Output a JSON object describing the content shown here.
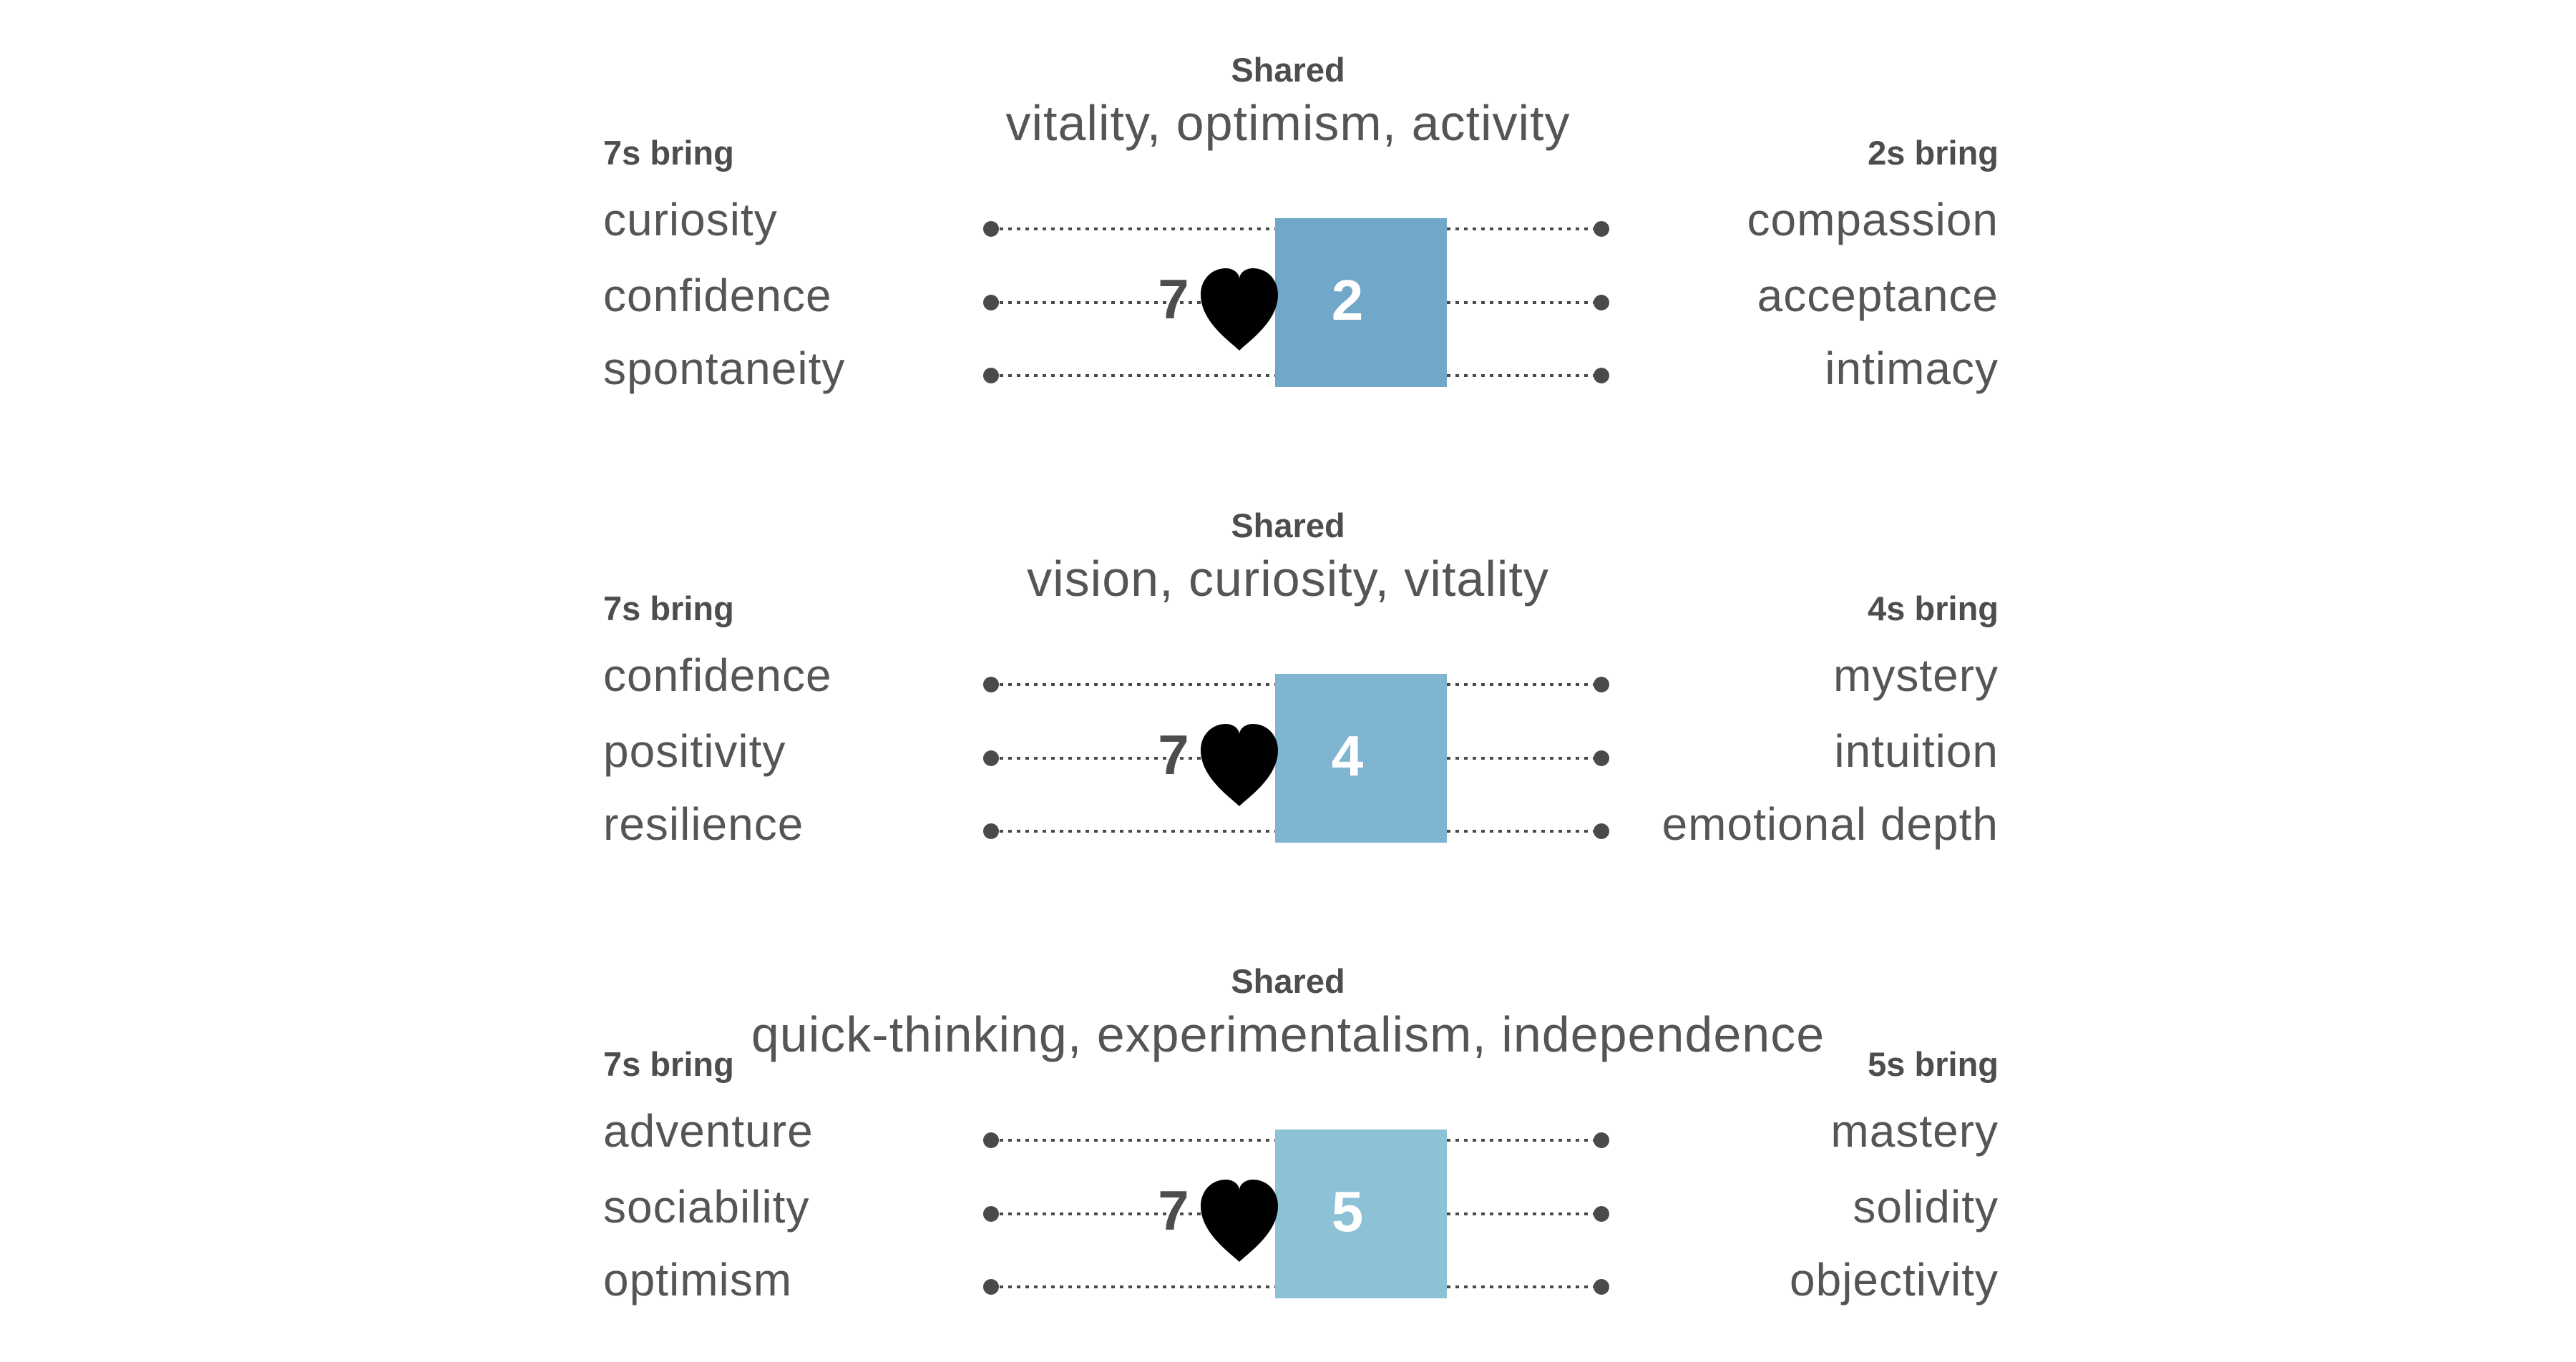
{
  "panels": [
    {
      "shared_title": "Shared",
      "shared": "vitality, optimism, activity",
      "left_head": "7s bring",
      "left_traits": [
        "curiosity",
        "confidence",
        "spontaneity"
      ],
      "right_head": "2s bring",
      "right_traits": [
        "compassion",
        "acceptance",
        "intimacy"
      ],
      "left_number": "7",
      "right_number": "2",
      "box_color": "#71a8c9"
    },
    {
      "shared_title": "Shared",
      "shared": "vision, curiosity, vitality",
      "left_head": "7s bring",
      "left_traits": [
        "confidence",
        "positivity",
        "resilience"
      ],
      "right_head": "4s bring",
      "right_traits": [
        "mystery",
        "intuition",
        "emotional depth"
      ],
      "left_number": "7",
      "right_number": "4",
      "box_color": "#7fb5d1"
    },
    {
      "shared_title": "Shared",
      "shared": "quick-thinking, experimentalism, independence",
      "left_head": "7s bring",
      "left_traits": [
        "adventure",
        "sociability",
        "optimism"
      ],
      "right_head": "5s bring",
      "right_traits": [
        "mastery",
        "solidity",
        "objectivity"
      ],
      "left_number": "7",
      "right_number": "5",
      "box_color": "#8cc1d6"
    }
  ],
  "icons": {
    "heart": "heart-icon"
  },
  "colors": {
    "text": "#555555",
    "heading": "#4d4d4d",
    "dots": "#4a4a4a",
    "heart": "#000000",
    "box_number": "#ffffff"
  }
}
